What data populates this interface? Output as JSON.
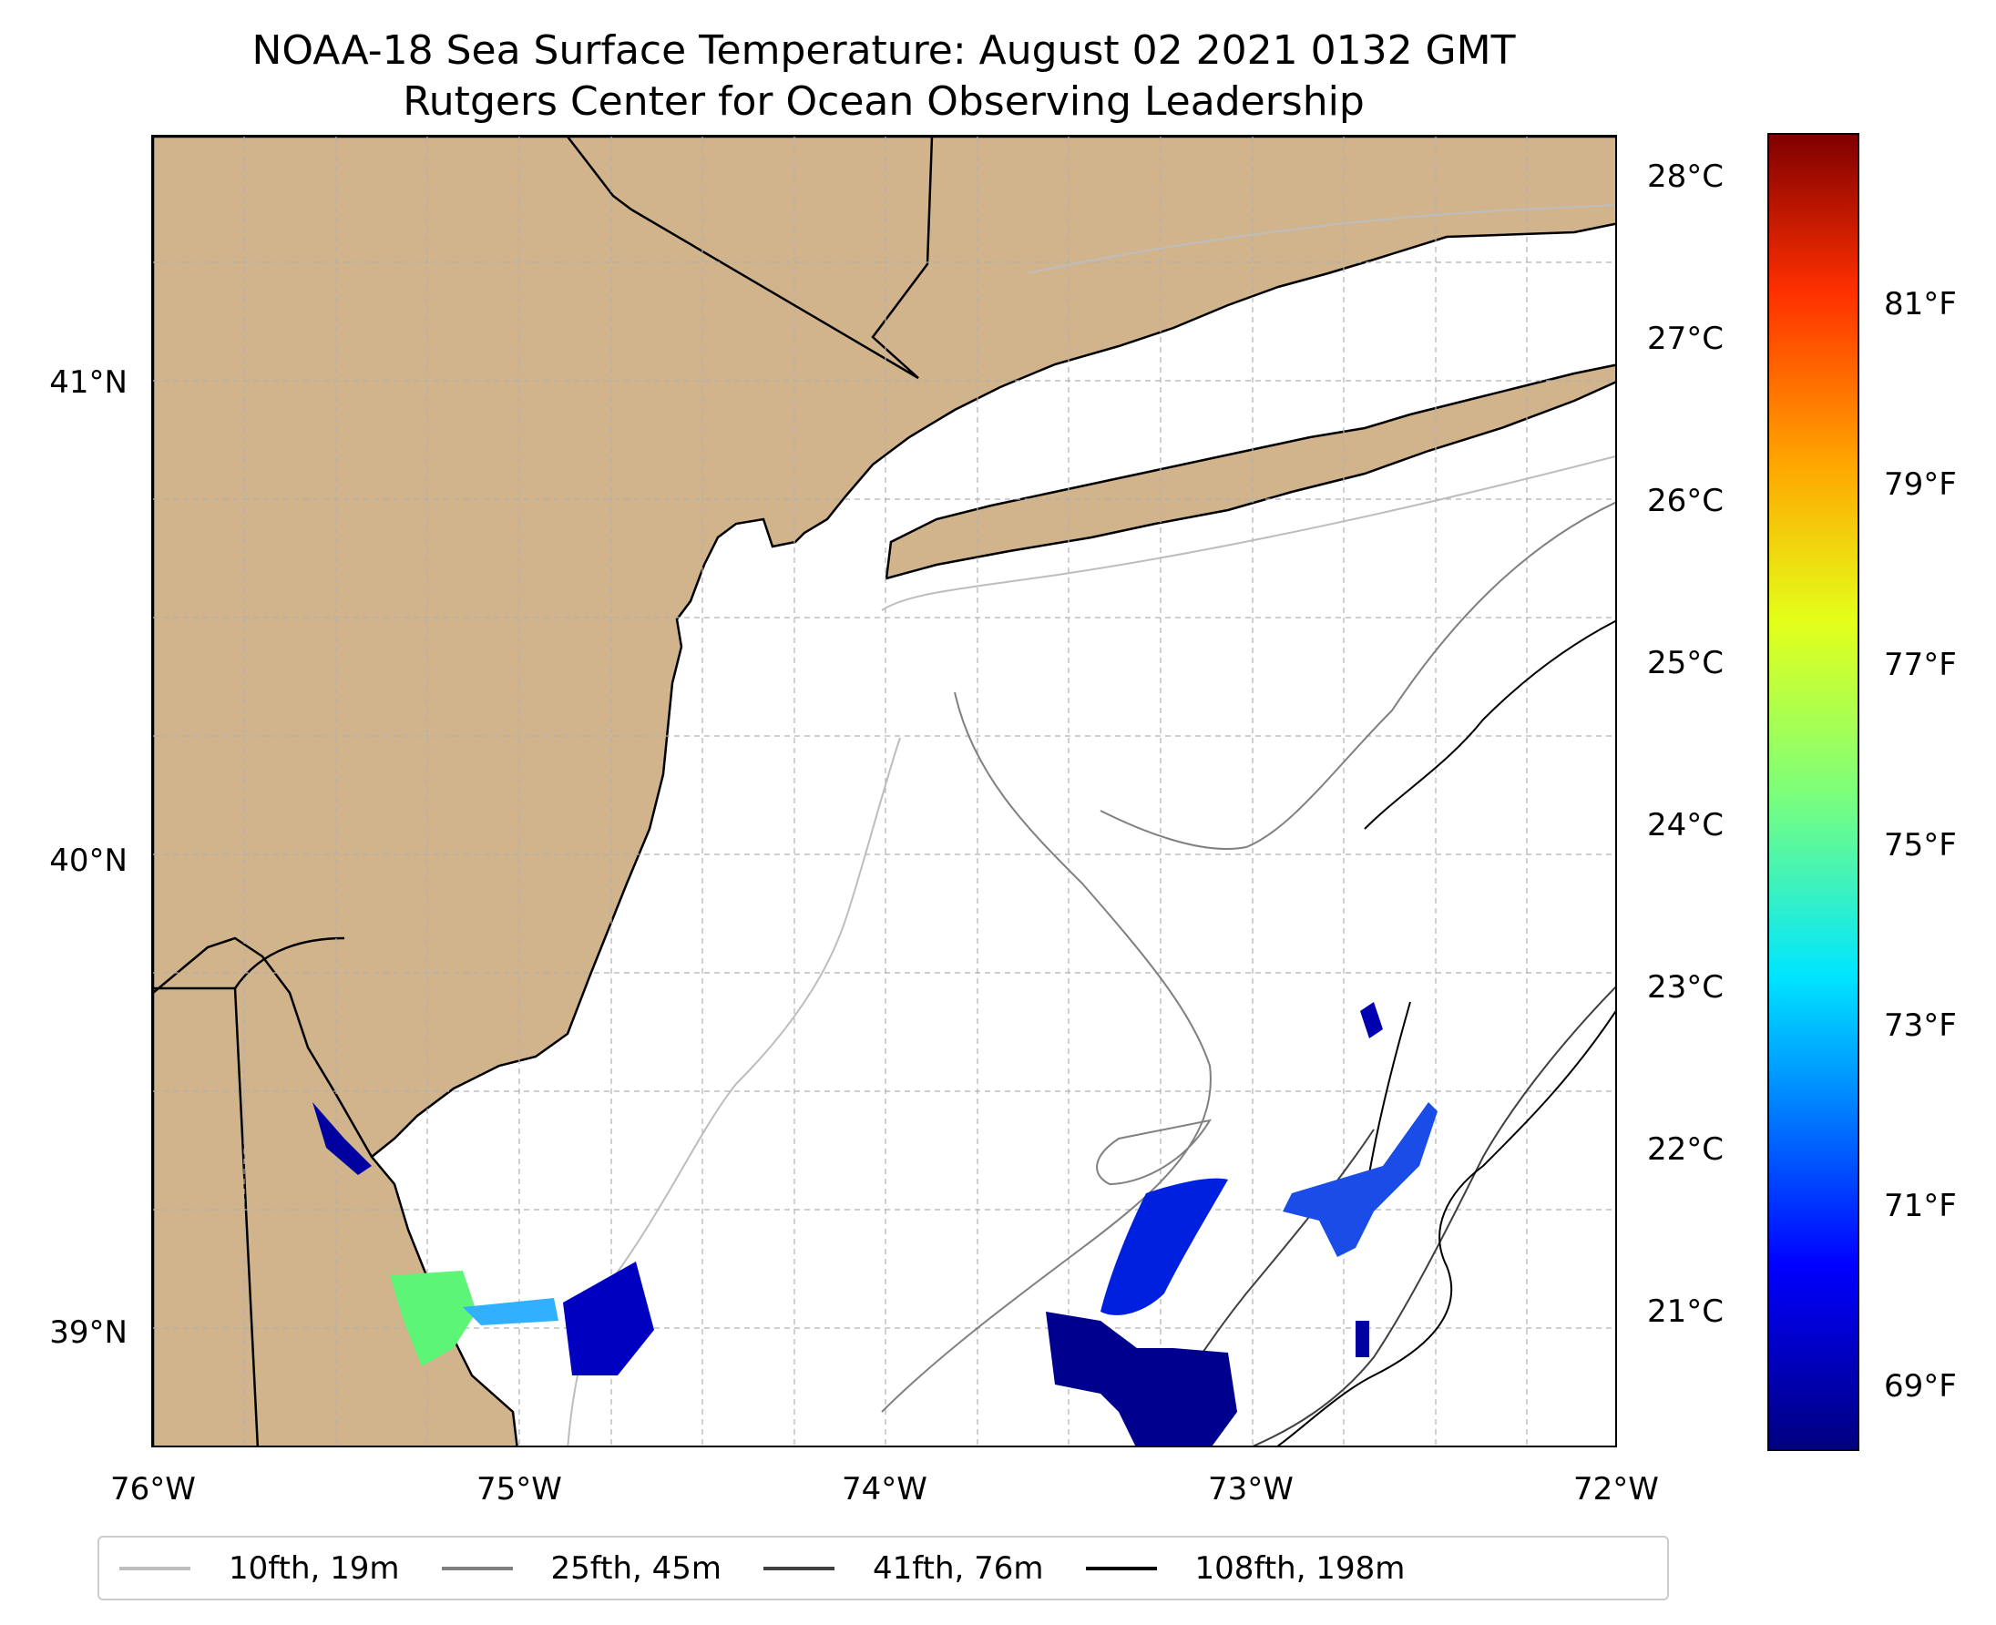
{
  "title": {
    "line1": "NOAA-18 Sea Surface Temperature: August 02 2021 0132 GMT",
    "line2": "Rutgers Center for Ocean Observing Leadership"
  },
  "axes": {
    "lat_ticks": [
      "41°N",
      "40°N",
      "39°N"
    ],
    "lon_ticks": [
      "76°W",
      "75°W",
      "74°W",
      "73°W",
      "72°W"
    ]
  },
  "colorbar": {
    "celsius_ticks": [
      "28°C",
      "27°C",
      "26°C",
      "25°C",
      "24°C",
      "23°C",
      "22°C",
      "21°C"
    ],
    "fahrenheit_ticks": [
      "81°F",
      "79°F",
      "77°F",
      "75°F",
      "73°F",
      "71°F",
      "69°F"
    ],
    "colormap": "jet"
  },
  "legend": [
    {
      "label": "10fth, 19m",
      "color": "#bdbdbd"
    },
    {
      "label": "25fth, 45m",
      "color": "#808080"
    },
    {
      "label": "41fth, 76m",
      "color": "#404040"
    },
    {
      "label": "108fth, 198m",
      "color": "#000000"
    }
  ],
  "colors": {
    "land": "#d2b48c",
    "ocean": "#ffffff",
    "coastline": "#000000",
    "gridline": "#b0b0b0"
  }
}
